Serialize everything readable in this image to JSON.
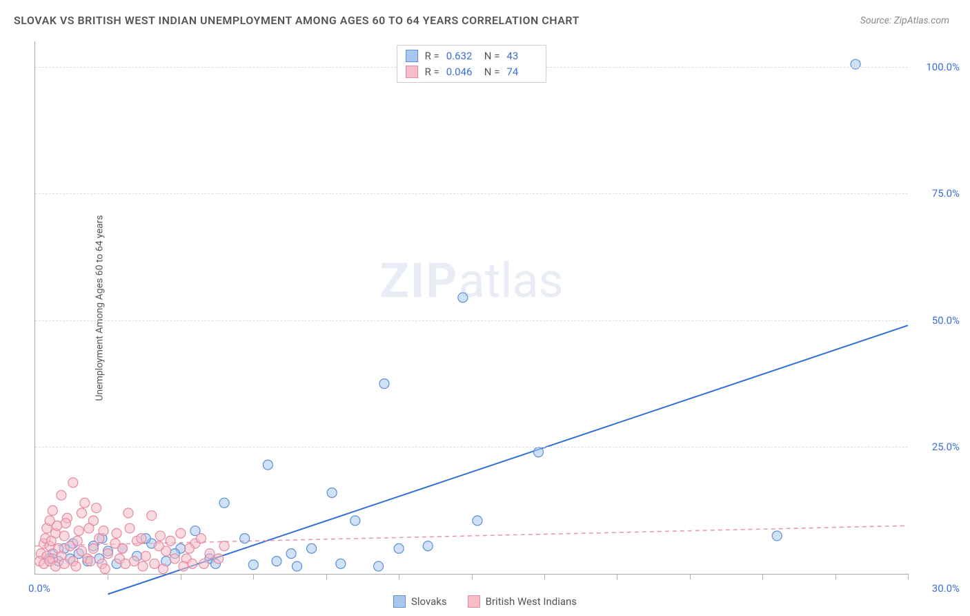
{
  "title": "SLOVAK VS BRITISH WEST INDIAN UNEMPLOYMENT AMONG AGES 60 TO 64 YEARS CORRELATION CHART",
  "source": "Source: ZipAtlas.com",
  "y_axis_label": "Unemployment Among Ages 60 to 64 years",
  "watermark_bold": "ZIP",
  "watermark_light": "atlas",
  "chart": {
    "type": "scatter",
    "xlim": [
      0,
      30
    ],
    "ylim": [
      0,
      105
    ],
    "x_origin_label": "0.0%",
    "x_max_label": "30.0%",
    "y_ticks": [
      {
        "value": 25,
        "label": "25.0%"
      },
      {
        "value": 50,
        "label": "50.0%"
      },
      {
        "value": 75,
        "label": "75.0%"
      },
      {
        "value": 100,
        "label": "100.0%"
      }
    ],
    "x_tick_positions": [
      2.5,
      5,
      7.5,
      10,
      12.5,
      15,
      17.5,
      20,
      22.5,
      25,
      27.5,
      30
    ],
    "background_color": "#ffffff",
    "grid_color": "#dddddd",
    "axis_color": "#aaaaaa",
    "tick_label_color": "#3b6fd8",
    "marker_radius": 7,
    "marker_stroke_width": 1.2,
    "series": [
      {
        "name": "Slovaks",
        "marker_fill": "#a9c7ec",
        "marker_stroke": "#5b8fd6",
        "fill_opacity": 0.55,
        "trend": {
          "x1": 2.5,
          "y1": -4,
          "x2": 30,
          "y2": 49,
          "stroke": "#2f6fd0",
          "width": 2,
          "dash": "none"
        },
        "R": "0.632",
        "N": "43",
        "points": [
          [
            28.2,
            100.5
          ],
          [
            14.7,
            54.5
          ],
          [
            12.0,
            37.5
          ],
          [
            17.3,
            24.0
          ],
          [
            8.0,
            21.5
          ],
          [
            10.2,
            16.0
          ],
          [
            6.5,
            14.0
          ],
          [
            11.0,
            10.5
          ],
          [
            15.2,
            10.5
          ],
          [
            25.5,
            7.5
          ],
          [
            13.5,
            5.5
          ],
          [
            12.5,
            5.0
          ],
          [
            8.8,
            4.0
          ],
          [
            10.5,
            2.0
          ],
          [
            9.0,
            1.5
          ],
          [
            11.8,
            1.5
          ],
          [
            7.2,
            7.0
          ],
          [
            6.0,
            3.0
          ],
          [
            5.0,
            5.0
          ],
          [
            4.5,
            2.5
          ],
          [
            4.0,
            6.0
          ],
          [
            3.5,
            3.5
          ],
          [
            3.0,
            5.0
          ],
          [
            2.8,
            2.0
          ],
          [
            2.5,
            4.5
          ],
          [
            2.2,
            3.0
          ],
          [
            2.0,
            5.5
          ],
          [
            1.8,
            2.5
          ],
          [
            1.5,
            4.0
          ],
          [
            1.2,
            3.0
          ],
          [
            1.0,
            5.0
          ],
          [
            0.8,
            2.5
          ],
          [
            0.6,
            4.0
          ],
          [
            0.5,
            3.0
          ],
          [
            5.5,
            8.5
          ],
          [
            7.5,
            1.8
          ],
          [
            3.8,
            7.0
          ],
          [
            4.8,
            4.0
          ],
          [
            6.2,
            2.0
          ],
          [
            8.3,
            2.5
          ],
          [
            9.5,
            5.0
          ],
          [
            1.3,
            6.0
          ],
          [
            2.3,
            7.0
          ]
        ]
      },
      {
        "name": "British West Indians",
        "marker_fill": "#f6bcc8",
        "marker_stroke": "#e38aa0",
        "fill_opacity": 0.55,
        "trend": {
          "x1": 0,
          "y1": 5.5,
          "x2": 30,
          "y2": 9.5,
          "stroke": "#e696a8",
          "width": 1.5,
          "dash": "6,5"
        },
        "R": "0.046",
        "N": "74",
        "points": [
          [
            1.3,
            18.0
          ],
          [
            0.9,
            15.5
          ],
          [
            1.7,
            14.0
          ],
          [
            0.6,
            12.5
          ],
          [
            1.1,
            11.0
          ],
          [
            2.0,
            10.5
          ],
          [
            3.2,
            12.0
          ],
          [
            4.0,
            11.5
          ],
          [
            0.4,
            9.0
          ],
          [
            0.7,
            8.0
          ],
          [
            1.0,
            7.5
          ],
          [
            1.5,
            8.5
          ],
          [
            2.2,
            7.0
          ],
          [
            2.8,
            8.0
          ],
          [
            3.5,
            6.5
          ],
          [
            4.3,
            7.5
          ],
          [
            5.0,
            8.0
          ],
          [
            5.5,
            6.0
          ],
          [
            0.3,
            6.0
          ],
          [
            0.5,
            5.5
          ],
          [
            0.8,
            5.0
          ],
          [
            1.2,
            5.5
          ],
          [
            1.6,
            4.5
          ],
          [
            2.0,
            5.0
          ],
          [
            2.5,
            4.0
          ],
          [
            3.0,
            5.0
          ],
          [
            3.8,
            3.5
          ],
          [
            4.5,
            4.5
          ],
          [
            5.2,
            3.0
          ],
          [
            6.0,
            4.0
          ],
          [
            0.2,
            4.0
          ],
          [
            0.4,
            3.5
          ],
          [
            0.6,
            3.0
          ],
          [
            0.9,
            3.5
          ],
          [
            1.3,
            2.5
          ],
          [
            1.8,
            3.0
          ],
          [
            2.3,
            2.0
          ],
          [
            2.9,
            3.0
          ],
          [
            3.4,
            2.5
          ],
          [
            4.1,
            2.0
          ],
          [
            4.8,
            3.0
          ],
          [
            5.4,
            2.0
          ],
          [
            6.3,
            3.0
          ],
          [
            0.15,
            2.5
          ],
          [
            0.3,
            2.0
          ],
          [
            0.5,
            2.5
          ],
          [
            0.7,
            1.5
          ],
          [
            1.0,
            2.0
          ],
          [
            1.4,
            1.5
          ],
          [
            1.9,
            2.5
          ],
          [
            2.4,
            1.0
          ],
          [
            3.1,
            2.0
          ],
          [
            3.7,
            1.5
          ],
          [
            4.4,
            1.0
          ],
          [
            5.1,
            1.5
          ],
          [
            5.8,
            2.0
          ],
          [
            0.35,
            7.0
          ],
          [
            0.55,
            6.5
          ],
          [
            0.75,
            9.5
          ],
          [
            1.05,
            10.0
          ],
          [
            1.45,
            6.5
          ],
          [
            1.85,
            9.0
          ],
          [
            2.35,
            8.5
          ],
          [
            2.75,
            6.0
          ],
          [
            3.25,
            9.0
          ],
          [
            3.65,
            7.0
          ],
          [
            4.25,
            5.5
          ],
          [
            4.65,
            6.5
          ],
          [
            5.3,
            5.0
          ],
          [
            5.7,
            7.0
          ],
          [
            6.5,
            5.5
          ],
          [
            1.6,
            12.0
          ],
          [
            2.1,
            13.0
          ],
          [
            0.5,
            10.5
          ]
        ]
      }
    ]
  },
  "stats_labels": {
    "R": "R  =",
    "N": "N  ="
  },
  "legend_bottom": [
    {
      "label": "Slovaks",
      "fill": "#a9c7ec",
      "stroke": "#5b8fd6"
    },
    {
      "label": "British West Indians",
      "fill": "#f6bcc8",
      "stroke": "#e38aa0"
    }
  ]
}
